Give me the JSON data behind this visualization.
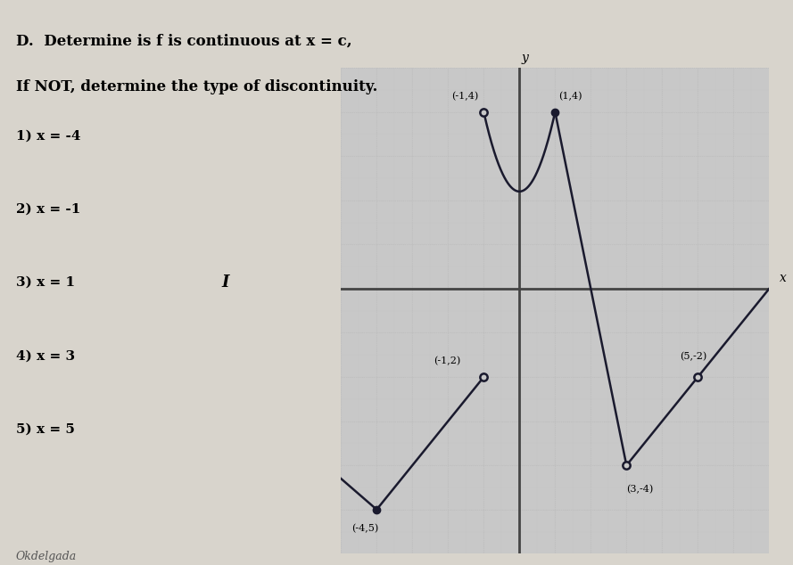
{
  "title1": "D.  Determine is f is continuous at x = c,",
  "title2": "If NOT, determine the type of discontinuity.",
  "questions": [
    "1) x = -4",
    "2) x = -1",
    "3) x = 1",
    "4) x = 3",
    "5) x = 5"
  ],
  "graph": {
    "xlim": [
      -5,
      7
    ],
    "ylim": [
      -6,
      5
    ],
    "bg_color": "#c8c8c8",
    "grid_color": "#b0b0b0",
    "axis_color": "#444444",
    "curve_color": "#1a1a2e",
    "dot_fill": "#1a1a2e",
    "dot_open_fill": "#c8c8c8"
  },
  "page_label": "I",
  "footer": "Okdelgada",
  "bg_page": "#d8d4cc"
}
